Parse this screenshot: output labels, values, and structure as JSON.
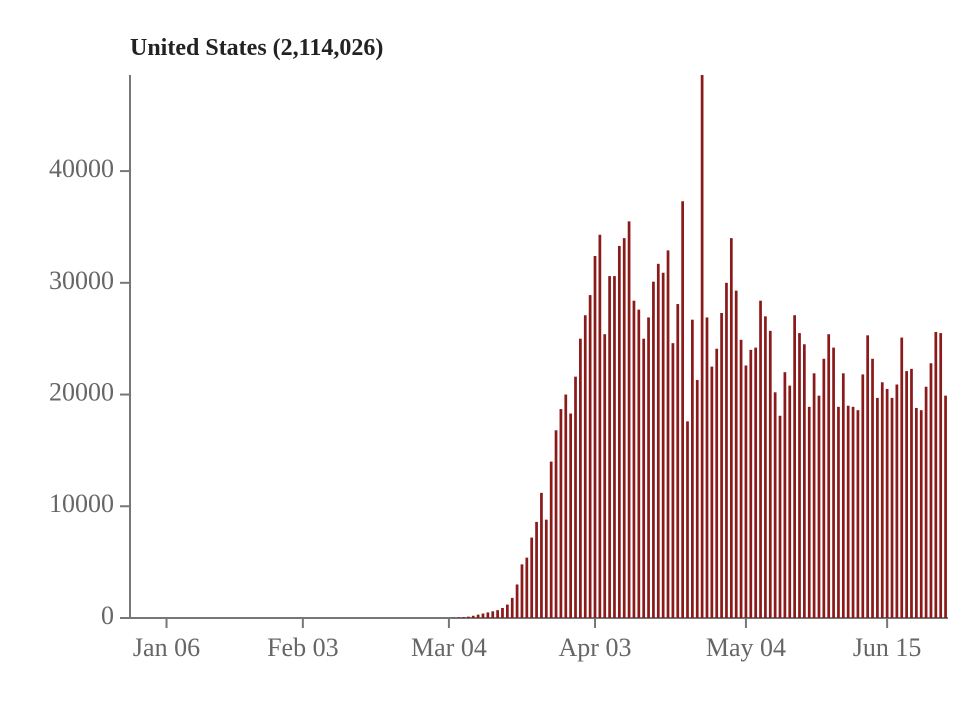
{
  "chart_data": {
    "type": "bar",
    "title": "United States (2,114,026)",
    "color": "#8b1a1a",
    "ylim": [
      0,
      48600
    ],
    "yticks": [
      0,
      10000,
      20000,
      30000,
      40000
    ],
    "categories": [
      null,
      null,
      null,
      null,
      null,
      null,
      null,
      "Jan 06",
      null,
      null,
      null,
      null,
      null,
      null,
      null,
      null,
      null,
      null,
      null,
      null,
      null,
      null,
      null,
      null,
      null,
      null,
      null,
      null,
      null,
      null,
      null,
      null,
      null,
      null,
      null,
      "Feb 03",
      null,
      null,
      null,
      null,
      null,
      null,
      null,
      null,
      null,
      null,
      null,
      null,
      null,
      null,
      null,
      null,
      null,
      null,
      null,
      null,
      null,
      null,
      null,
      null,
      null,
      null,
      null,
      null,
      null,
      "Mar 04",
      null,
      null,
      null,
      null,
      null,
      null,
      null,
      null,
      null,
      null,
      null,
      null,
      null,
      null,
      null,
      null,
      null,
      null,
      null,
      null,
      null,
      null,
      null,
      null,
      null,
      null,
      null,
      null,
      null,
      "Apr 03",
      null,
      null,
      null,
      null,
      null,
      null,
      null,
      null,
      null,
      null,
      null,
      null,
      null,
      null,
      null,
      null,
      null,
      null,
      null,
      null,
      null,
      null,
      null,
      null,
      null,
      null,
      null,
      null,
      null,
      null,
      "May 04",
      null,
      null,
      null,
      null,
      null,
      null,
      null,
      null,
      null,
      null,
      null,
      null,
      null,
      null,
      null,
      null,
      null,
      null,
      null,
      null,
      null,
      null,
      null,
      null,
      null,
      null,
      null,
      null,
      "Jun 15",
      null,
      null,
      null,
      null,
      null,
      null,
      null,
      null,
      null,
      null,
      null,
      null
    ],
    "values": [
      0,
      0,
      0,
      0,
      0,
      0,
      0,
      0,
      0,
      0,
      0,
      0,
      0,
      0,
      0,
      0,
      0,
      0,
      0,
      0,
      0,
      0,
      0,
      0,
      0,
      0,
      0,
      0,
      0,
      0,
      0,
      0,
      0,
      0,
      0,
      0,
      0,
      0,
      0,
      0,
      0,
      0,
      0,
      0,
      0,
      0,
      0,
      0,
      0,
      0,
      0,
      0,
      0,
      0,
      0,
      0,
      0,
      0,
      0,
      0,
      0,
      0,
      0,
      0,
      0,
      0,
      30,
      50,
      80,
      120,
      200,
      300,
      400,
      500,
      600,
      700,
      900,
      1200,
      1800,
      3000,
      4800,
      5400,
      7200,
      8600,
      11200,
      8800,
      14000,
      16800,
      18700,
      20000,
      18300,
      21600,
      25000,
      27100,
      28900,
      32400,
      34300,
      25400,
      30600,
      30600,
      33300,
      34000,
      35500,
      28400,
      27600,
      25000,
      26900,
      30100,
      31700,
      30900,
      32900,
      24600,
      28100,
      37300,
      17600,
      26700,
      21300,
      48600,
      26900,
      22500,
      24100,
      27300,
      30000,
      34000,
      29300,
      24900,
      22600,
      24000,
      24200,
      28400,
      27000,
      25700,
      20200,
      18100,
      22000,
      20800,
      27100,
      25500,
      24500,
      18900,
      21900,
      19900,
      23200,
      25400,
      24200,
      18900,
      21900,
      19000,
      18900,
      18600,
      21800,
      25300,
      23200,
      19700,
      21100,
      20500,
      19700,
      20900,
      25100,
      22100,
      22300,
      18800,
      18600,
      20700,
      22800,
      25600,
      25500,
      19900
    ]
  }
}
